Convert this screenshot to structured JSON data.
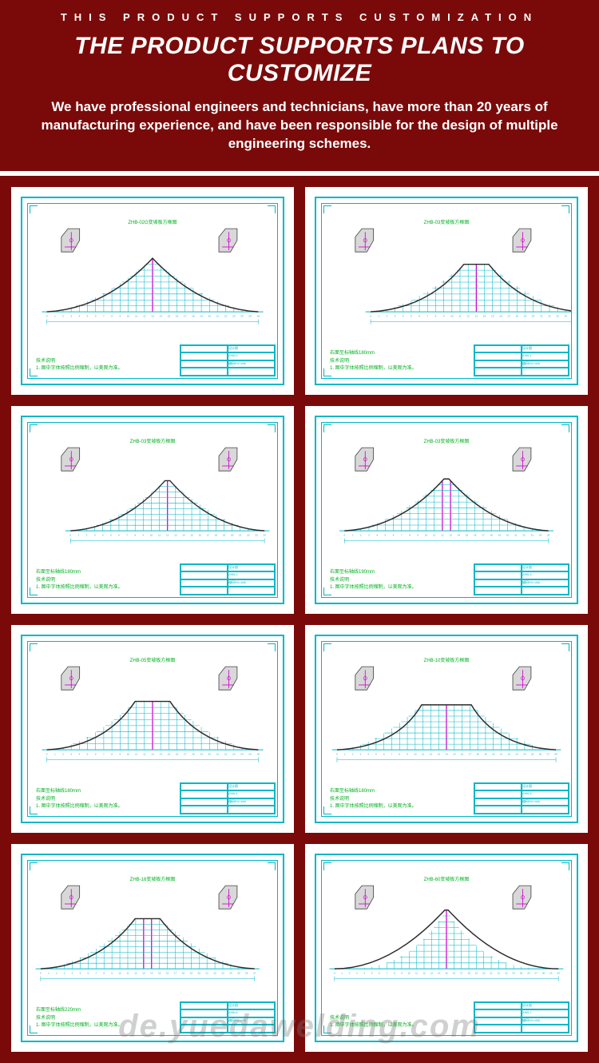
{
  "header": {
    "eyebrow": "THIS PRODUCT SUPPORTS CUSTOMIZATION",
    "headline": "THE PRODUCT SUPPORTS PLANS TO CUSTOMIZE",
    "copy": "We have professional engineers and technicians, have more than 20 years of manufacturing experience, and have been responsible for the design of multiple engineering schemes.",
    "bg_color": "#7a0a0a",
    "text_color": "#ffffff"
  },
  "watermark": "de.yuedawelding.com",
  "drawing_common": {
    "frame_color": "#00b7c6",
    "grid_color": "#00b7c6",
    "curve_color": "#2a2a2a",
    "accent_color": "#d100d1",
    "text_color": "#00b020",
    "detail_fill": "#d8d8d8",
    "tech_note_heading": "技术说明",
    "tech_note_body": "1. 图中字体按照比例缩制，以美观为准。"
  },
  "tiles": [
    {
      "title": "ZHB-02G变坡板方框图",
      "spacing_note": "",
      "curve": {
        "type": "bell",
        "width": 0.85,
        "peak": 0.62,
        "flat_top": 0.0,
        "offset": 0.5
      },
      "grid": {
        "cols": 26,
        "rows": 9
      }
    },
    {
      "title": "ZHB-03变坡板方框图",
      "spacing_note": "右面至标轴线180mm",
      "curve": {
        "type": "bell",
        "width": 0.85,
        "peak": 0.55,
        "flat_top": 0.1,
        "offset": 0.62
      },
      "grid": {
        "cols": 26,
        "rows": 8
      }
    },
    {
      "title": "ZHB-03变坡板方框图",
      "spacing_note": "右面至标轴线180mm",
      "curve": {
        "type": "bell",
        "width": 0.78,
        "peak": 0.58,
        "flat_top": 0.02,
        "offset": 0.56
      },
      "grid": {
        "cols": 24,
        "rows": 9
      }
    },
    {
      "title": "ZHB-03变坡板方框图",
      "spacing_note": "右面至标轴线190mm",
      "curve": {
        "type": "bell",
        "width": 0.82,
        "peak": 0.6,
        "flat_top": 0.02,
        "offset": 0.5
      },
      "grid": {
        "cols": 25,
        "rows": 9
      }
    },
    {
      "title": "ZHB-05变坡板方框图",
      "spacing_note": "右面至标轴线180mm",
      "curve": {
        "type": "bell",
        "width": 0.85,
        "peak": 0.56,
        "flat_top": 0.14,
        "offset": 0.5
      },
      "grid": {
        "cols": 26,
        "rows": 8
      }
    },
    {
      "title": "ZHB-10变坡板方框图",
      "spacing_note": "右面至标轴线180mm",
      "curve": {
        "type": "bell",
        "width": 0.88,
        "peak": 0.52,
        "flat_top": 0.2,
        "offset": 0.5
      },
      "grid": {
        "cols": 28,
        "rows": 8
      }
    },
    {
      "title": "ZHB-16变坡板方框图",
      "spacing_note": "右面至标轴线220mm",
      "curve": {
        "type": "bell",
        "width": 0.86,
        "peak": 0.58,
        "flat_top": 0.1,
        "offset": 0.48
      },
      "grid": {
        "cols": 27,
        "rows": 9
      }
    },
    {
      "title": "ZHB-60变坡板方框图",
      "spacing_note": "",
      "curve": {
        "type": "spike",
        "width": 0.9,
        "peak": 0.68,
        "flat_top": 0.0,
        "offset": 0.5
      },
      "grid": {
        "cols": 30,
        "rows": 10
      }
    }
  ]
}
